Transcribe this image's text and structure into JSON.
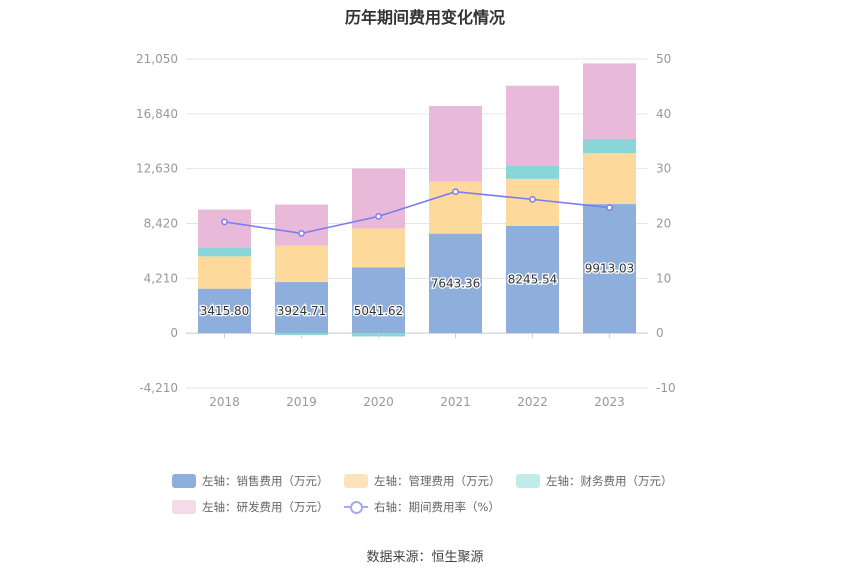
{
  "title": "历年期间费用变化情况",
  "source": "数据来源：恒生聚源",
  "colors": {
    "sales": "#8eaedc",
    "mgmt": "#fdd99b",
    "finance": "#88d6d8",
    "rd": "#e8b9d8",
    "rate": "#7b7cf0",
    "axis_text": "#999999",
    "grid": "#e6e6e6"
  },
  "legend": [
    {
      "key": "sales",
      "label": "左轴：销售费用（万元）",
      "kind": "bar",
      "color": "#8eaedc"
    },
    {
      "key": "mgmt",
      "label": "左轴：管理费用（万元）",
      "kind": "bar",
      "color": "#fde3b9"
    },
    {
      "key": "finance",
      "label": "左轴：财务费用（万元）",
      "kind": "bar",
      "color": "#c2ebec"
    },
    {
      "key": "rd",
      "label": "左轴：研发费用（万元）",
      "kind": "bar",
      "color": "#f3dbea"
    },
    {
      "key": "rate",
      "label": "右轴：期间费用率（%）",
      "kind": "line",
      "color": "#a7a8f5"
    }
  ],
  "chart_data": {
    "type": "bar",
    "title": "历年期间费用变化情况",
    "categories": [
      "2018",
      "2019",
      "2020",
      "2021",
      "2022",
      "2023"
    ],
    "left_axis": {
      "ylim": [
        -4210,
        21050
      ],
      "ticks": [
        "-4,210",
        "0",
        "4,210",
        "8,420",
        "12,630",
        "16,840",
        "21,050"
      ],
      "tick_values": [
        -4210,
        0,
        4210,
        8420,
        12630,
        16840,
        21050
      ]
    },
    "right_axis": {
      "ylim": [
        -10,
        50
      ],
      "ticks": [
        "-10",
        "0",
        "10",
        "20",
        "30",
        "40",
        "50"
      ],
      "tick_values": [
        -10,
        0,
        10,
        20,
        30,
        40,
        50
      ]
    },
    "grid": true,
    "legend_position": "bottom",
    "series": [
      {
        "name": "左轴：销售费用（万元）",
        "key": "sales",
        "axis": "left",
        "stacked": true,
        "values": [
          3415.8,
          3924.71,
          5041.62,
          7643.36,
          8245.54,
          9913.03
        ],
        "labels": [
          "3415.80",
          "3924.71",
          "5041.62",
          "7643.36",
          "8245.54",
          "9913.03"
        ]
      },
      {
        "name": "左轴：管理费用（万元）",
        "key": "mgmt",
        "axis": "left",
        "stacked": true,
        "values": [
          2480,
          2800,
          3000,
          4000,
          3600,
          3900
        ]
      },
      {
        "name": "左轴：财务费用（万元）",
        "key": "finance",
        "axis": "left",
        "stacked": true,
        "values": [
          700,
          -150,
          -250,
          0,
          1050,
          1100
        ]
      },
      {
        "name": "左轴：研发费用（万元）",
        "key": "rd",
        "axis": "left",
        "stacked": true,
        "values": [
          2900,
          3150,
          4600,
          5800,
          6100,
          5800
        ]
      },
      {
        "name": "右轴：期间费用率（%）",
        "key": "rate",
        "axis": "right",
        "type": "line",
        "values": [
          20.3,
          18.2,
          21.3,
          25.8,
          24.4,
          22.9
        ]
      }
    ]
  }
}
